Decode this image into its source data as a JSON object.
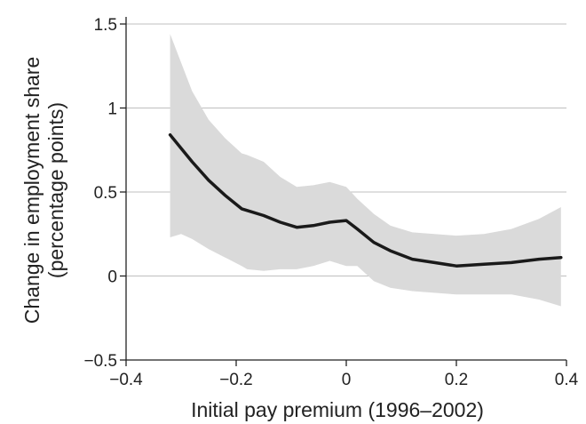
{
  "chart_data": {
    "type": "line",
    "xlabel": "Initial pay premium (1996–2002)",
    "ylabel": [
      "Change in employment share",
      "(percentage points)"
    ],
    "xlim": [
      -0.4,
      0.4
    ],
    "ylim": [
      -0.5,
      1.5
    ],
    "xticks": [
      -0.4,
      -0.2,
      0,
      0.2,
      0.4
    ],
    "xtick_labels": [
      "−0.4",
      "−0.2",
      "0",
      "0.2",
      "0.4"
    ],
    "yticks": [
      -0.5,
      0,
      0.5,
      1,
      1.5
    ],
    "ytick_labels": [
      "−0.5",
      "0",
      "0.5",
      "1",
      "1.5"
    ],
    "grid": "horizontal",
    "series": [
      {
        "x": [
          -0.32,
          -0.3,
          -0.28,
          -0.25,
          -0.22,
          -0.19,
          -0.18,
          -0.15,
          -0.12,
          -0.09,
          -0.06,
          -0.03,
          0.0,
          0.02,
          0.05,
          0.08,
          0.12,
          0.16,
          0.2,
          0.25,
          0.3,
          0.35,
          0.39
        ],
        "y": [
          0.84,
          0.76,
          0.68,
          0.57,
          0.48,
          0.4,
          0.39,
          0.36,
          0.32,
          0.29,
          0.3,
          0.32,
          0.33,
          0.28,
          0.2,
          0.15,
          0.1,
          0.08,
          0.06,
          0.07,
          0.08,
          0.1,
          0.11
        ],
        "color": "#1a1a1a"
      }
    ],
    "confidence_band": {
      "x": [
        -0.32,
        -0.3,
        -0.28,
        -0.25,
        -0.22,
        -0.19,
        -0.18,
        -0.15,
        -0.12,
        -0.09,
        -0.06,
        -0.03,
        0.0,
        0.02,
        0.05,
        0.08,
        0.12,
        0.16,
        0.2,
        0.25,
        0.3,
        0.35,
        0.39
      ],
      "upper": [
        1.44,
        1.27,
        1.1,
        0.93,
        0.82,
        0.73,
        0.72,
        0.68,
        0.59,
        0.53,
        0.54,
        0.56,
        0.53,
        0.46,
        0.37,
        0.3,
        0.26,
        0.25,
        0.24,
        0.25,
        0.28,
        0.34,
        0.41
      ],
      "lower": [
        0.23,
        0.25,
        0.22,
        0.16,
        0.11,
        0.06,
        0.04,
        0.03,
        0.04,
        0.04,
        0.06,
        0.09,
        0.06,
        0.06,
        -0.03,
        -0.07,
        -0.09,
        -0.1,
        -0.11,
        -0.11,
        -0.11,
        -0.14,
        -0.18
      ],
      "color": "#dadada"
    }
  }
}
